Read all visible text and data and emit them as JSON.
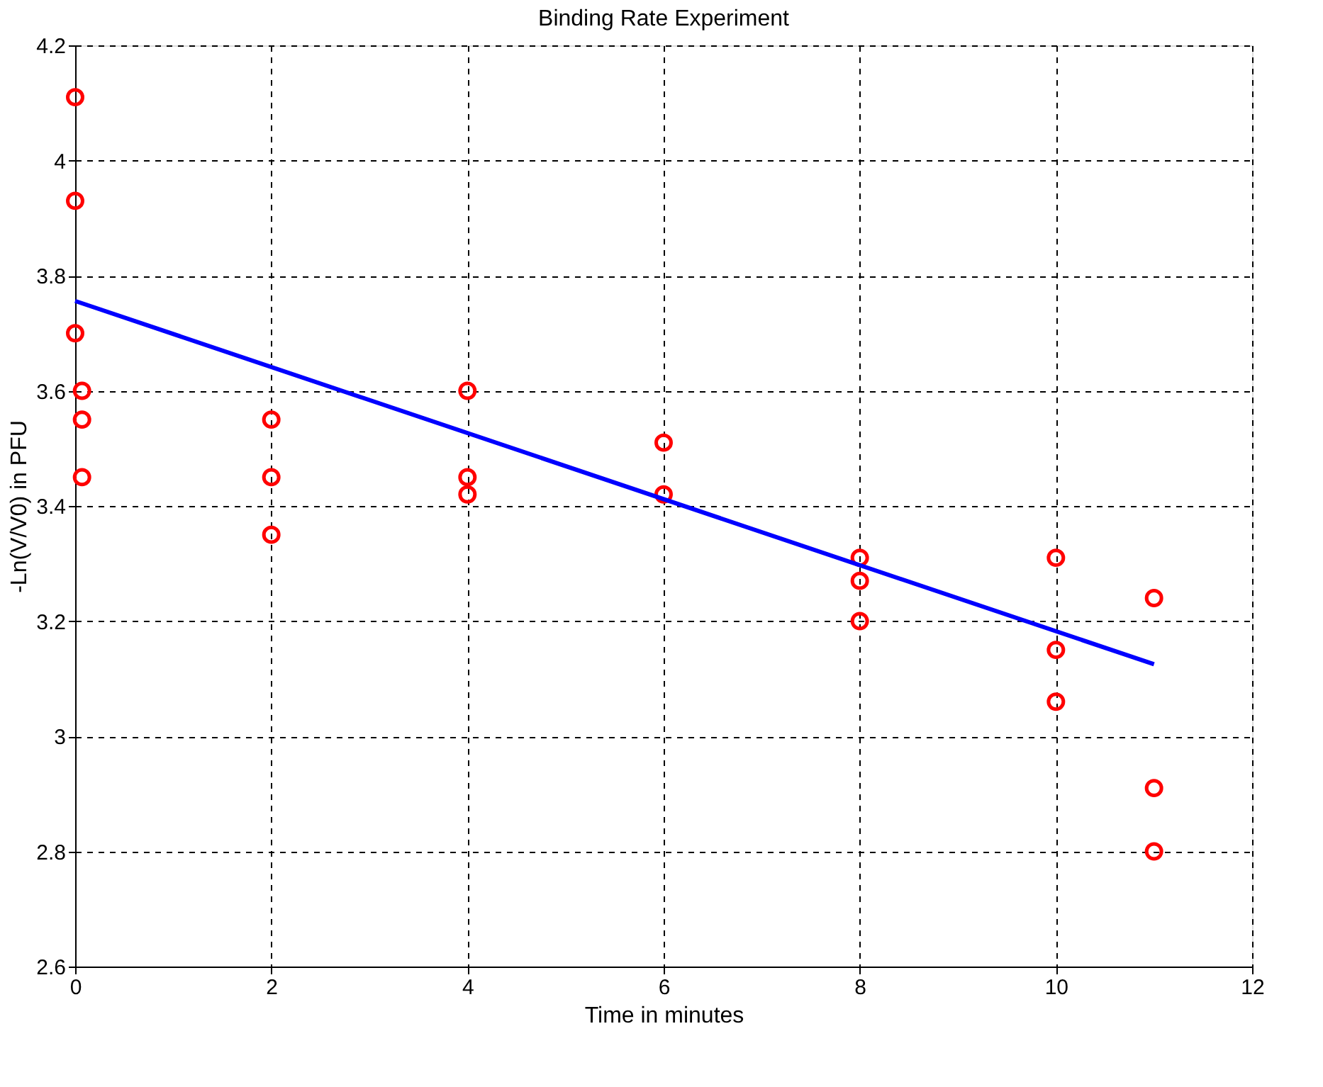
{
  "chart_data": {
    "type": "scatter",
    "title": "Binding Rate Experiment",
    "xlabel": "Time in minutes",
    "ylabel": "-Ln(V/V0) in PFU",
    "xlim": [
      0,
      12
    ],
    "ylim": [
      2.6,
      4.2
    ],
    "xticks": [
      0,
      2,
      4,
      6,
      8,
      10,
      12
    ],
    "yticks": [
      2.6,
      2.8,
      3,
      3.2,
      3.4,
      3.6,
      3.8,
      4,
      4.2
    ],
    "grid": true,
    "legend": false,
    "series": [
      {
        "color": "#ff0000",
        "marker": "circle",
        "x": [
          0,
          0,
          0,
          0.07,
          0.07,
          0.07,
          2,
          2,
          2,
          4,
          4,
          4,
          6,
          6,
          8,
          8,
          8,
          10,
          10,
          10,
          11,
          11,
          11
        ],
        "values": [
          4.11,
          3.93,
          3.7,
          3.6,
          3.55,
          3.45,
          3.55,
          3.45,
          3.35,
          3.6,
          3.45,
          3.42,
          3.51,
          3.42,
          3.31,
          3.27,
          3.2,
          3.31,
          3.15,
          3.06,
          3.24,
          2.91,
          2.8
        ]
      },
      {
        "type": "line",
        "color": "#0000ff",
        "line_style": "solid",
        "x": [
          0,
          11
        ],
        "values": [
          3.756,
          3.125
        ]
      }
    ]
  }
}
